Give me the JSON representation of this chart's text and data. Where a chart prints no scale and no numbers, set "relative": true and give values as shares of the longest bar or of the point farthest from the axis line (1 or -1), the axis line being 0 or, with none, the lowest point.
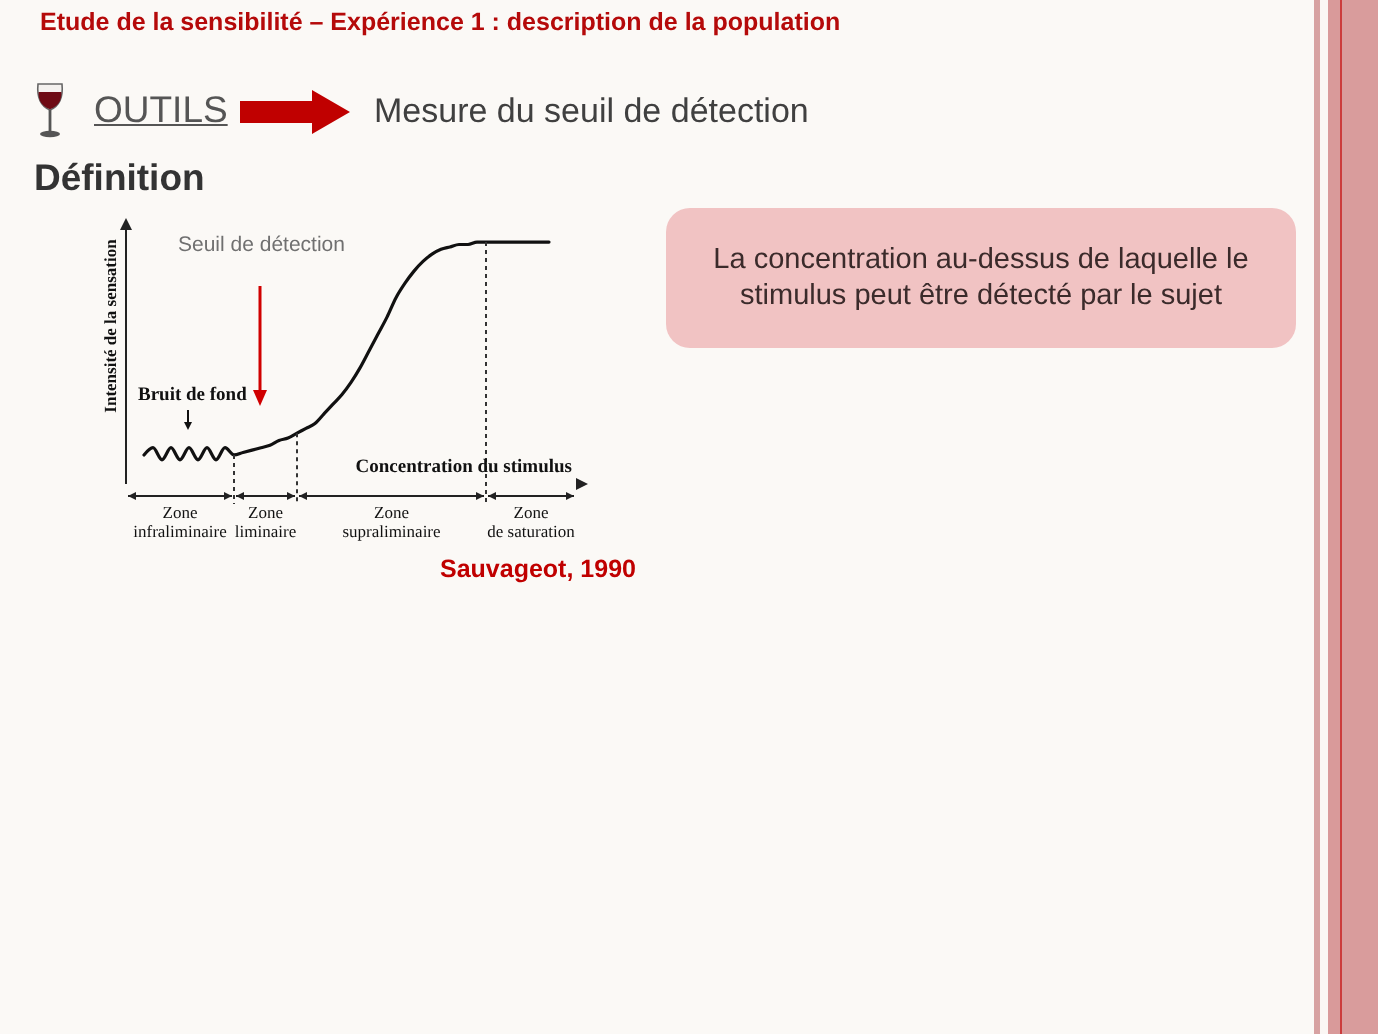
{
  "chart_data": {
    "type": "line",
    "title": "Etude de la sensibilité – Expérience 1 : description de la population",
    "subtitle": "Mesure du seuil de détection",
    "xlabel": "Concentration du stimulus",
    "ylabel": "Intensité de la sensation",
    "annotations": [
      "OUTILS",
      "Définition",
      "La concentration au-dessus de laquelle le stimulus peut être détecté par le sujet",
      "Seuil de détection",
      "Bruit de fond",
      "Sauvageot, 1990",
      "Zone infraliminaire",
      "Zone liminaire",
      "Zone supraliminaire",
      "Zone de saturation"
    ],
    "relative": true,
    "color": "#111111",
    "categories": [
      null,
      null,
      null,
      null,
      null,
      null,
      null,
      null,
      null,
      null,
      null,
      null,
      null,
      null,
      null,
      null,
      null,
      null,
      null,
      null,
      null,
      null,
      null,
      null,
      null,
      null,
      null,
      null,
      null,
      null,
      null,
      null,
      null,
      null,
      null,
      null,
      null,
      null,
      null,
      null,
      null,
      null,
      null,
      null,
      null,
      null,
      null,
      null,
      null,
      null,
      null
    ],
    "values": [
      null,
      null,
      0.12,
      0.15,
      0.1,
      0.15,
      0.1,
      0.15,
      0.1,
      0.15,
      0.1,
      0.15,
      0.12,
      0.13,
      0.14,
      0.15,
      0.16,
      0.18,
      0.19,
      0.21,
      0.23,
      0.25,
      0.29,
      0.33,
      0.37,
      0.42,
      0.48,
      0.55,
      0.62,
      0.69,
      0.77,
      0.83,
      0.88,
      0.92,
      0.95,
      0.97,
      0.98,
      0.99,
      0.99,
      1,
      1,
      1,
      1,
      1,
      1,
      1,
      1,
      1,
      null,
      null,
      null
    ]
  }
}
